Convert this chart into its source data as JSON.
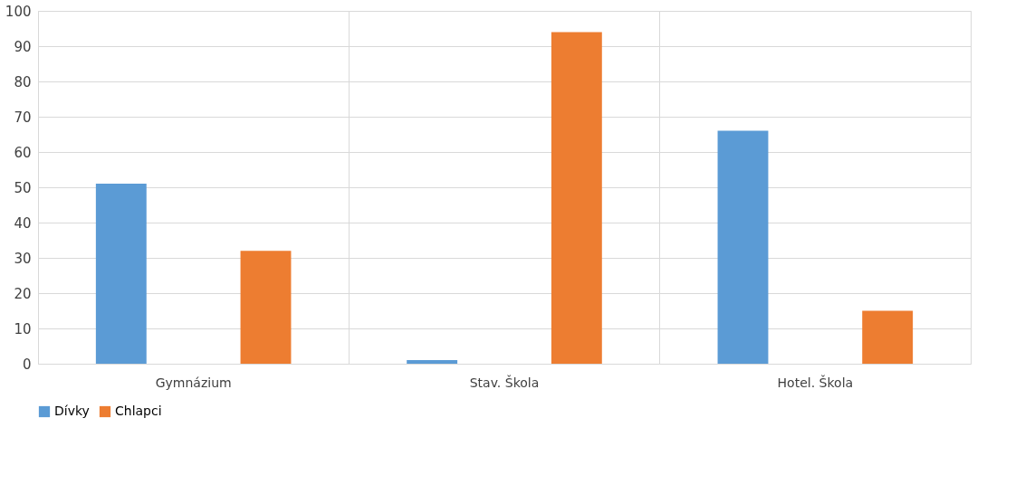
{
  "chart_data": {
    "type": "bar",
    "categories": [
      "Gymnázium",
      "Stav. Škola",
      "Hotel. Škola"
    ],
    "series": [
      {
        "name": "Dívky",
        "color": "#5b9bd5",
        "values": [
          51,
          1,
          66
        ]
      },
      {
        "name": "Chlapci",
        "color": "#ed7d31",
        "values": [
          32,
          94,
          15
        ]
      }
    ],
    "ylim": [
      0,
      100
    ],
    "yticks": [
      0,
      10,
      20,
      30,
      40,
      50,
      60,
      70,
      80,
      90,
      100
    ],
    "grid": true,
    "legend": "bottom"
  }
}
